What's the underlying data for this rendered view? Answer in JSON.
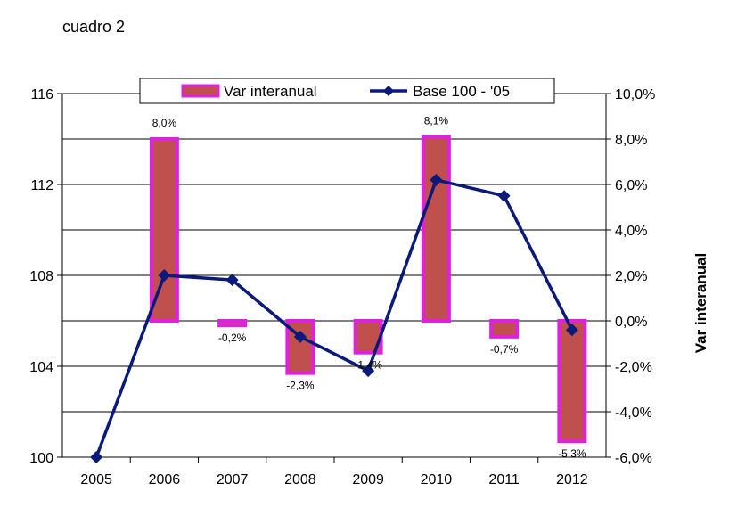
{
  "caption": "cuadro 2",
  "chart_data": {
    "type": "bar+line",
    "categories": [
      "2005",
      "2006",
      "2007",
      "2008",
      "2009",
      "2010",
      "2011",
      "2012"
    ],
    "series": [
      {
        "name": "Var interanual",
        "type": "bar",
        "axis": "right",
        "values": [
          null,
          8.0,
          -0.2,
          -2.3,
          -1.4,
          8.1,
          -0.7,
          -5.3
        ],
        "data_labels": [
          "",
          "8,0%",
          "-0,2%",
          "-2,3%",
          "-1,4%",
          "8,1%",
          "-0,7%",
          "-5,3%"
        ],
        "fill": "#c0504d",
        "stroke": "#e020e0"
      },
      {
        "name": "Base 100 - '05",
        "type": "line",
        "axis": "left",
        "values": [
          100.0,
          108.0,
          107.8,
          105.3,
          103.8,
          112.2,
          111.5,
          105.6
        ],
        "color": "#0a1a7a"
      }
    ],
    "left_axis": {
      "min": 100,
      "max": 116,
      "ticks": [
        "100",
        "104",
        "108",
        "112",
        "116"
      ]
    },
    "right_axis": {
      "min": -6,
      "max": 10,
      "ticks": [
        "-6,0%",
        "-4,0%",
        "-2,0%",
        "0,0%",
        "2,0%",
        "4,0%",
        "6,0%",
        "8,0%",
        "10,0%"
      ],
      "label": "Var interanual"
    },
    "legend_position": "top",
    "grid": true
  }
}
